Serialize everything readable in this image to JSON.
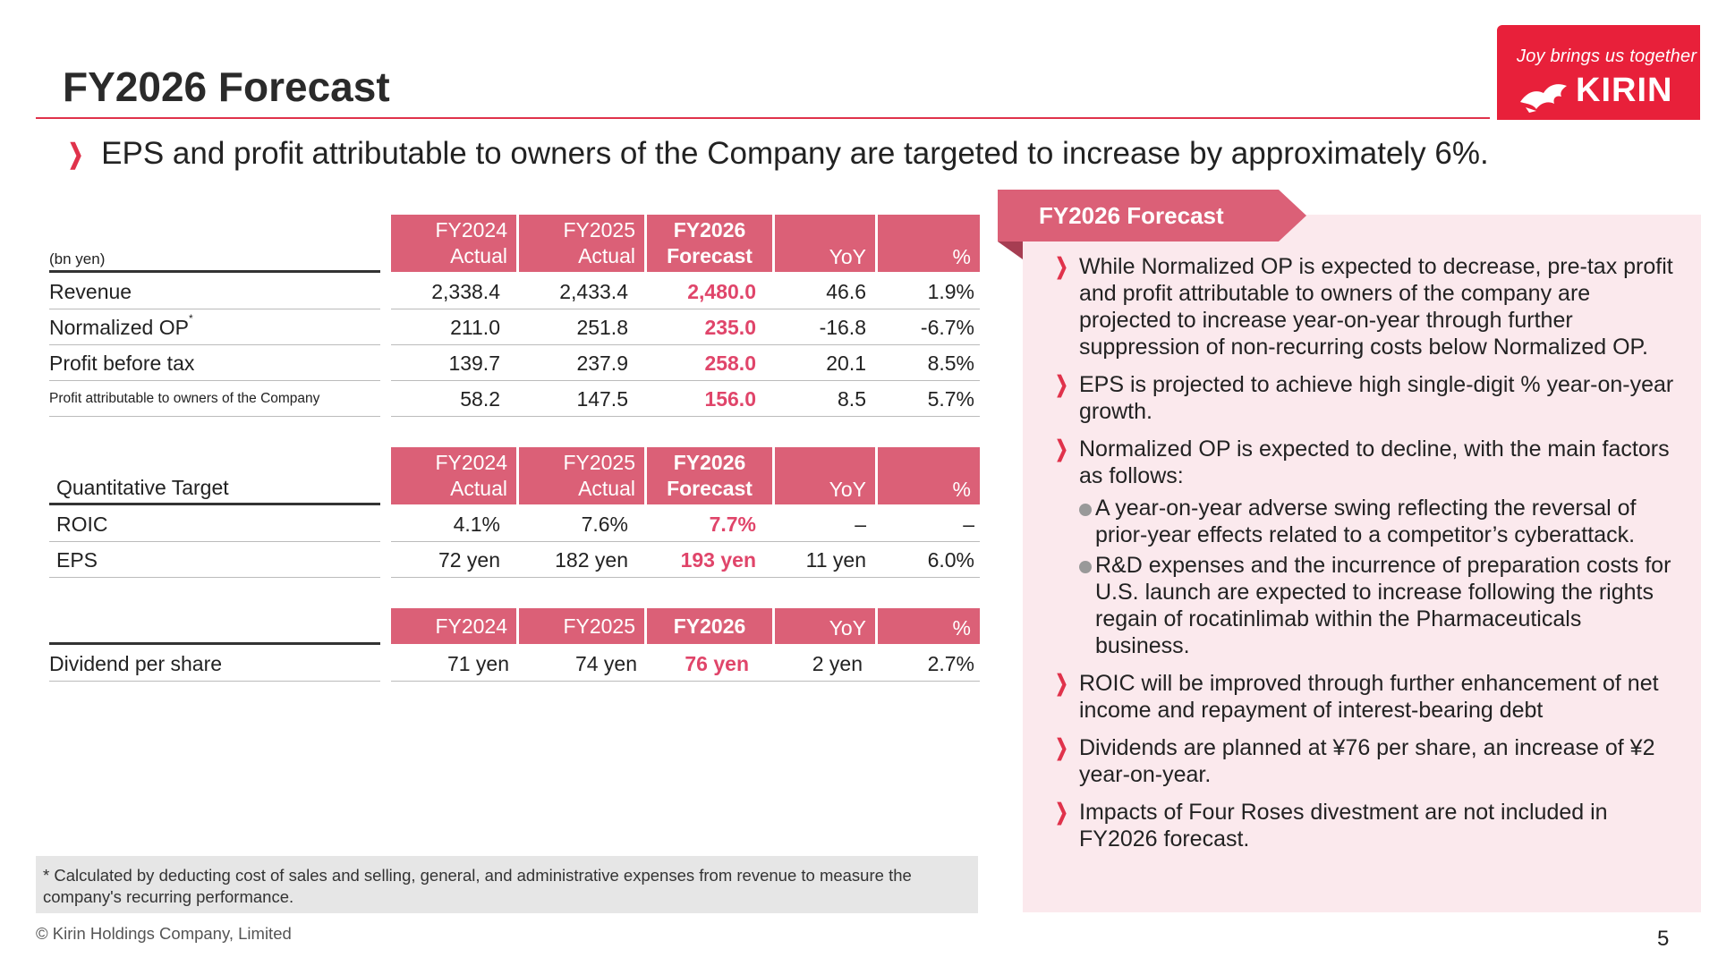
{
  "page": {
    "title": "FY2026 Forecast",
    "headline": "EPS and profit attributable to owners of the Company are targeted to increase by approximately 6%.",
    "copyright": "© Kirin Holdings Company, Limited",
    "page_number": "5",
    "brand": {
      "tagline": "Joy brings us together",
      "name": "KIRIN",
      "color": "#e8203a"
    },
    "accent_color": "#db6077",
    "highlight_color": "#e0456a"
  },
  "table1": {
    "unit": "(bn yen)",
    "headers": [
      "FY2024\nActual",
      "FY2025\nActual",
      "FY2026\nForecast",
      "YoY",
      "%"
    ],
    "rows": [
      {
        "label": "Revenue",
        "sup": "",
        "values": [
          "2,338.4",
          "2,433.4",
          "2,480.0",
          "46.6",
          "1.9%"
        ]
      },
      {
        "label": "Normalized OP",
        "sup": "*",
        "values": [
          "211.0",
          "251.8",
          "235.0",
          "-16.8",
          "-6.7%"
        ]
      },
      {
        "label": "Profit before tax",
        "sup": "",
        "values": [
          "139.7",
          "237.9",
          "258.0",
          "20.1",
          "8.5%"
        ]
      },
      {
        "label": "Profit attributable to owners of the Company",
        "sup": "",
        "values": [
          "58.2",
          "147.5",
          "156.0",
          "8.5",
          "5.7%"
        ]
      }
    ]
  },
  "table2": {
    "label": "Quantitative Target",
    "headers": [
      "FY2024\nActual",
      "FY2025\nActual",
      "FY2026\nForecast",
      "YoY",
      "%"
    ],
    "rows": [
      {
        "label": "ROIC",
        "values": [
          "4.1%",
          "7.6%",
          "7.7%",
          "–",
          "–"
        ]
      },
      {
        "label": "EPS",
        "values": [
          "72 yen",
          "182 yen",
          "193 yen",
          "11 yen",
          "6.0%"
        ]
      }
    ]
  },
  "table3": {
    "headers": [
      "FY2024",
      "FY2025",
      "FY2026",
      "YoY",
      "%"
    ],
    "rows": [
      {
        "label": "Dividend per share",
        "values": [
          "71 yen",
          "74 yen",
          "76 yen",
          "2 yen",
          "2.7%"
        ]
      }
    ]
  },
  "footnote": "* Calculated by deducting cost of sales and selling, general, and administrative expenses from revenue to measure the company's recurring performance.",
  "panel": {
    "title": "FY2026 Forecast",
    "bullets": [
      "While Normalized OP is expected to decrease, pre-tax profit and profit attributable to owners of the company are projected to increase year-on-year through further suppression of non-recurring costs below Normalized OP.",
      "EPS is projected to achieve high single-digit % year-on-year growth.",
      "Normalized OP is expected to decline, with the main factors as follows:",
      "ROIC will be improved through further enhancement of net income and repayment of interest-bearing debt",
      "Dividends are planned at ¥76 per share, an increase of ¥2 year-on-year.",
      "Impacts of Four Roses divestment are not included in FY2026 forecast."
    ],
    "sub_bullets": [
      "A year-on-year adverse swing reflecting the reversal of prior-year effects related to a competitor’s cyberattack.",
      "R&D expenses and the incurrence of preparation costs for U.S. launch are expected to increase following the rights regain of rocatinlimab within the Pharmaceuticals business."
    ]
  }
}
